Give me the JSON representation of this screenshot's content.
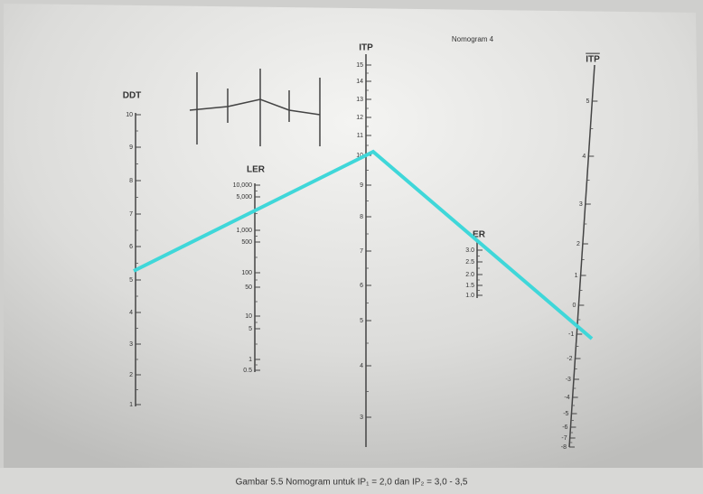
{
  "header": {
    "title": "Nomogram 4"
  },
  "scales": [
    {
      "label": "DDT",
      "ticks": [
        "10",
        "9",
        "8",
        "7",
        "6",
        "5",
        "4",
        "3",
        "2",
        "1"
      ]
    },
    {
      "label": "LER",
      "ticks": [
        "10,000",
        "5,000",
        "1,000",
        "500",
        "100",
        "50",
        "10",
        "5",
        "1",
        "0.5"
      ]
    },
    {
      "label": "ITP",
      "ticks": [
        "15",
        "14",
        "13",
        "12",
        "11",
        "10",
        "9",
        "8",
        "7",
        "6",
        "5",
        "4",
        "3"
      ]
    },
    {
      "label": "ER",
      "ticks": [
        "3.0",
        "2.5",
        "2.0",
        "1.5",
        "1.0"
      ]
    },
    {
      "label": "ITP",
      "ticks": [
        "5",
        "4",
        "3",
        "2",
        "1",
        "0",
        "-1",
        "-2",
        "-3",
        "-4",
        "-5",
        "-6",
        "-7",
        "-8"
      ]
    }
  ],
  "caption": "Gambar 5.5  Nomogram untuk IP₁ = 2,0 dan IP₂ = 3,0 - 3,5"
}
